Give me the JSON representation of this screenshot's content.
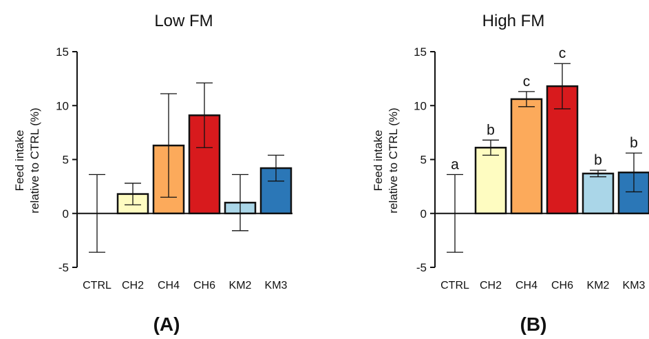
{
  "chart_data": [
    {
      "type": "bar",
      "title": "Low FM",
      "panel_label": "(A)",
      "ylabel_lines": [
        "Feed intake",
        "relative to CTRL (%)"
      ],
      "ylim": [
        -5,
        15
      ],
      "yticks": [
        -5,
        0,
        5,
        10,
        15
      ],
      "ytick_labels": [
        "-5",
        "0",
        "5",
        "10",
        "15"
      ],
      "categories": [
        "CTRL",
        "CH2",
        "CH4",
        "CH6",
        "KM2",
        "KM3"
      ],
      "values": [
        0,
        1.8,
        6.3,
        9.1,
        1.0,
        4.2
      ],
      "errors": [
        3.6,
        1.0,
        4.8,
        3.0,
        2.6,
        1.2
      ],
      "colors": [
        "#ffffff",
        "#fefcc1",
        "#fcaa5b",
        "#d81a1d",
        "#aad6e8",
        "#2b77b7"
      ],
      "significance": [],
      "grid": false,
      "legend": "none"
    },
    {
      "type": "bar",
      "title": "High FM",
      "panel_label": "(B)",
      "ylabel_lines": [
        "Feed intake",
        "relative to CTRL (%)"
      ],
      "ylim": [
        -5,
        15
      ],
      "yticks": [
        -5,
        0,
        5,
        10,
        15
      ],
      "ytick_labels": [
        "-5",
        "0",
        "5",
        "10",
        "15"
      ],
      "categories": [
        "CTRL",
        "CH2",
        "CH4",
        "CH6",
        "KM2",
        "KM3"
      ],
      "values": [
        0,
        6.1,
        10.6,
        11.8,
        3.7,
        3.8
      ],
      "errors": [
        3.6,
        0.7,
        0.7,
        2.1,
        0.3,
        1.8
      ],
      "colors": [
        "#ffffff",
        "#fefcc1",
        "#fcaa5b",
        "#d81a1d",
        "#aad6e8",
        "#2b77b7"
      ],
      "significance": [
        "a",
        "b",
        "c",
        "c",
        "b",
        "b"
      ],
      "grid": false,
      "legend": "none"
    }
  ]
}
